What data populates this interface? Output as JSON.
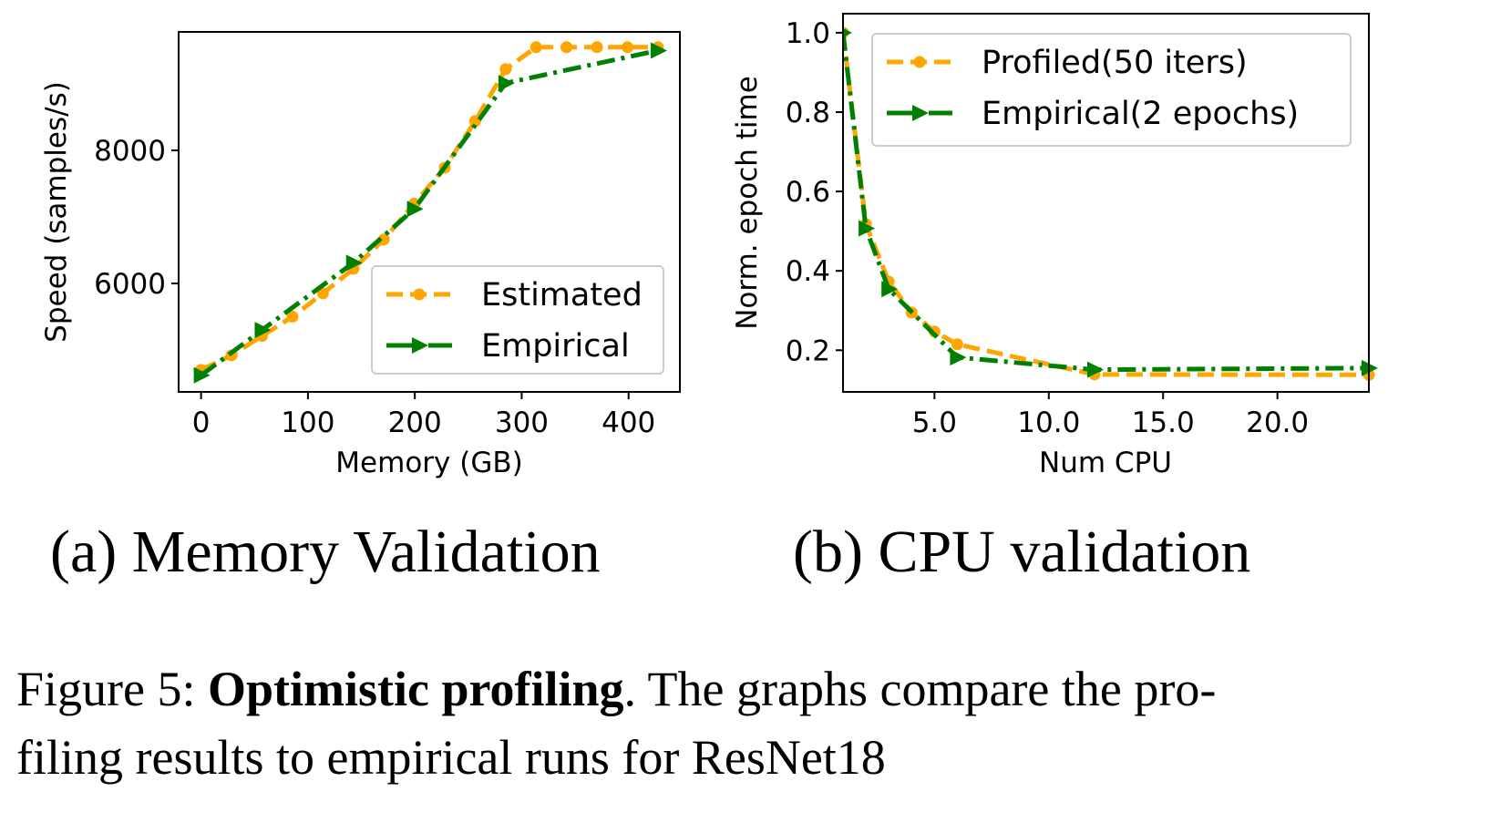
{
  "colors": {
    "estimated": "#FFA500",
    "empirical": "#008000"
  },
  "chart_data": [
    {
      "type": "line",
      "xlabel": "Memory (GB)",
      "ylabel": "Speed (samples/s)",
      "xlim": [
        -21,
        448
      ],
      "ylim": [
        4370,
        9780
      ],
      "xticks": [
        0,
        100,
        200,
        300,
        400
      ],
      "yticks": [
        6000,
        8000
      ],
      "grid": false,
      "legend": "lower-right",
      "series": [
        {
          "name": "Estimated",
          "style": "dashed",
          "marker": "circle",
          "color": "#FFA500",
          "x": [
            0,
            28.5,
            57,
            85.5,
            114,
            142.5,
            171,
            199.5,
            228,
            256.5,
            285,
            313.5,
            342,
            370.5,
            399,
            427.5
          ],
          "y": [
            4700,
            4920,
            5210,
            5500,
            5850,
            6220,
            6660,
            7200,
            7740,
            8440,
            9220,
            9550,
            9550,
            9550,
            9550,
            9550
          ]
        },
        {
          "name": "Empirical",
          "style": "dashdot",
          "marker": "triangle-right",
          "color": "#008000",
          "x": [
            0,
            57,
            142.5,
            199.5,
            285,
            427.5
          ],
          "y": [
            4620,
            5300,
            6310,
            7120,
            9010,
            9500
          ]
        }
      ]
    },
    {
      "type": "line",
      "xlabel": "Num CPU",
      "ylabel": "Norm. epoch time",
      "xlim": [
        1,
        24
      ],
      "ylim": [
        0.095,
        1.048
      ],
      "xticks": [
        5,
        10,
        15,
        20
      ],
      "yticks": [
        0.2,
        0.4,
        0.6,
        0.8,
        1.0
      ],
      "grid": false,
      "legend": "upper-right",
      "series": [
        {
          "name": "Profiled(50 iters)",
          "style": "dashed",
          "marker": "circle",
          "color": "#FFA500",
          "x": [
            1,
            2,
            3,
            4,
            5,
            6,
            12,
            24
          ],
          "y": [
            1.0,
            0.518,
            0.373,
            0.295,
            0.247,
            0.215,
            0.139,
            0.138
          ]
        },
        {
          "name": "Empirical(2 epochs)",
          "style": "dashdot",
          "marker": "triangle-right",
          "color": "#008000",
          "x": [
            1,
            2,
            3,
            6,
            12,
            24
          ],
          "y": [
            1.0,
            0.507,
            0.354,
            0.182,
            0.151,
            0.155
          ]
        }
      ]
    }
  ],
  "subcaptions": {
    "a": "(a) Memory Validation",
    "b": "(b) CPU validation"
  },
  "caption": {
    "prefix": "Figure 5: ",
    "bold": "Optimistic profiling",
    "line1_rest": ". The graphs compare the pro-",
    "line2": "filing results to empirical runs for ResNet18"
  }
}
